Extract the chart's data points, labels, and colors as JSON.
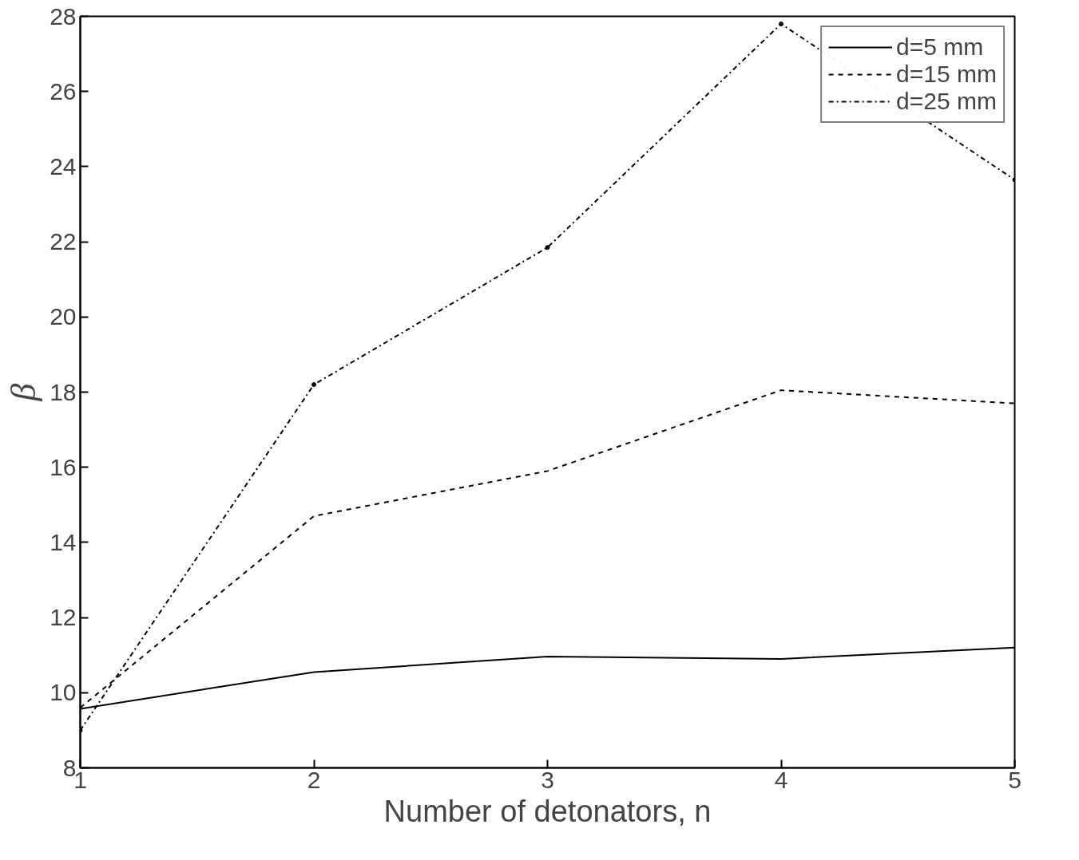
{
  "chart_data": {
    "type": "line",
    "xlabel": "Number of detonators, n",
    "ylabel": "β",
    "x": [
      1,
      2,
      3,
      4,
      5
    ],
    "series": [
      {
        "name": "d=5 mm",
        "color": "#000000",
        "line_style": "solid",
        "marker": "none",
        "values": [
          9.57,
          10.55,
          10.96,
          10.9,
          11.2
        ]
      },
      {
        "name": "d=15 mm",
        "color": "#000000",
        "line_style": "dashed",
        "marker": "none",
        "values": [
          9.6,
          14.7,
          15.9,
          18.05,
          17.7
        ]
      },
      {
        "name": "d=25 mm",
        "color": "#000000",
        "line_style": "dashdot",
        "marker": "circle",
        "values": [
          9.0,
          18.2,
          21.85,
          27.8,
          23.65
        ]
      }
    ],
    "xlim": [
      1,
      5
    ],
    "xticks": [
      1,
      2,
      3,
      4,
      5
    ],
    "ylim": [
      8,
      28
    ],
    "yticks": [
      8,
      10,
      12,
      14,
      16,
      18,
      20,
      22,
      24,
      26,
      28
    ],
    "grid": false,
    "legend": "top right"
  }
}
